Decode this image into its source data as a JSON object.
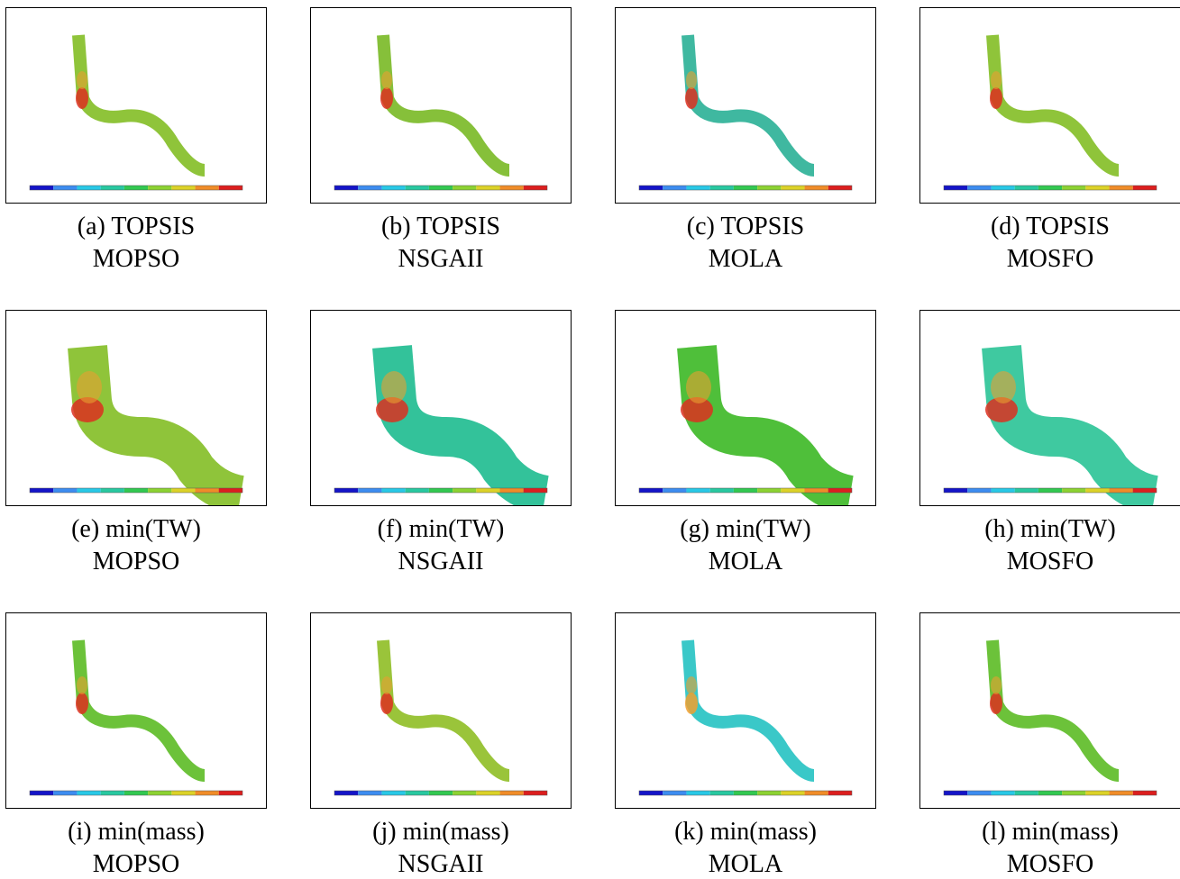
{
  "panels": [
    {
      "label": "(a) TOPSIS",
      "method": "MOPSO"
    },
    {
      "label": "(b) TOPSIS",
      "method": "NSGAII"
    },
    {
      "label": "(c) TOPSIS",
      "method": "MOLA"
    },
    {
      "label": "(d) TOPSIS",
      "method": "MOSFO"
    },
    {
      "label": "(e) min(TW)",
      "method": "MOPSO"
    },
    {
      "label": "(f) min(TW)",
      "method": "NSGAII"
    },
    {
      "label": "(g) min(TW)",
      "method": "MOLA"
    },
    {
      "label": "(h) min(TW)",
      "method": "MOSFO"
    },
    {
      "label": "(i) min(mass)",
      "method": "MOPSO"
    },
    {
      "label": "(j) min(mass)",
      "method": "NSGAII"
    },
    {
      "label": "(k) min(mass)",
      "method": "MOLA"
    },
    {
      "label": "(l) min(mass)",
      "method": "MOSFO"
    }
  ]
}
